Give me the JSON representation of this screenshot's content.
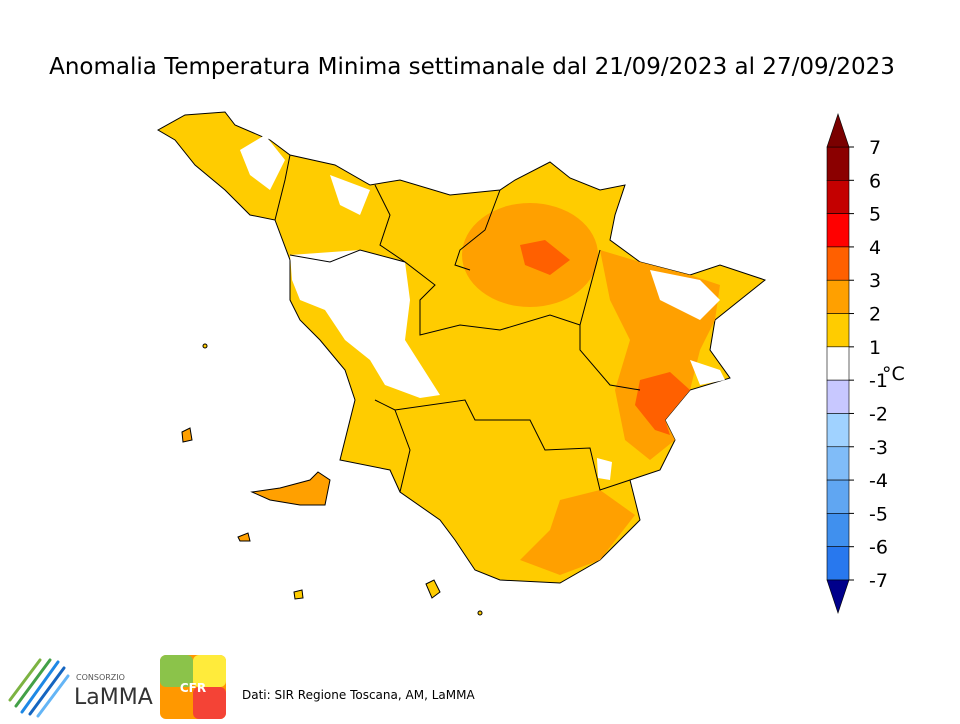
{
  "header": {
    "title": "Anomalia Temperatura Minima settimanale dal 21/09/2023 al 27/09/2023"
  },
  "colorbar": {
    "unit": "°C",
    "ticks": [
      7,
      6,
      5,
      4,
      3,
      2,
      1,
      -1,
      -2,
      -3,
      -4,
      -5,
      -6,
      -7
    ],
    "colors": [
      "#8b0000",
      "#c40000",
      "#ff0000",
      "#ff6000",
      "#ffa000",
      "#ffcc00",
      "#ffffff",
      "#c8c8ff",
      "#a0d2ff",
      "#80bcf8",
      "#60a6f2",
      "#4090ee",
      "#2878ee"
    ],
    "over_color": "#7a0000",
    "under_color": "#00008b"
  },
  "footer": {
    "logo_small": "CONSORZIO",
    "logo_name": "LaMMA",
    "cfr": "CFR",
    "source": "Dati: SIR Regione Toscana, AM, LaMMA"
  }
}
